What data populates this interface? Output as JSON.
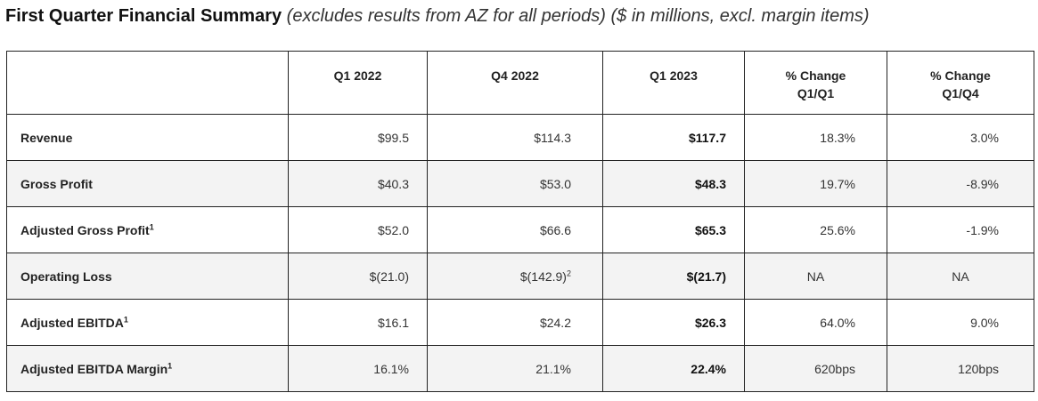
{
  "heading": {
    "title": "First Quarter Financial Summary",
    "subtitle": "(excludes results from AZ for all periods) ($ in millions, excl. margin items)"
  },
  "table": {
    "columns": [
      {
        "line1": "",
        "line2": ""
      },
      {
        "line1": "Q1 2022",
        "line2": ""
      },
      {
        "line1": "Q4 2022",
        "line2": ""
      },
      {
        "line1": "Q1 2023",
        "line2": ""
      },
      {
        "line1": "% Change",
        "line2": "Q1/Q1"
      },
      {
        "line1": "% Change",
        "line2": "Q1/Q4"
      }
    ],
    "rows": [
      {
        "label": "Revenue",
        "label_sup": "",
        "q1_2022": "$99.5",
        "q4_2022": "$114.3",
        "q4_sup": "",
        "q1_2023": "$117.7",
        "chg_q1q1": "18.3%",
        "chg_q1q4": "3.0%"
      },
      {
        "label": "Gross Profit",
        "label_sup": "",
        "q1_2022": "$40.3",
        "q4_2022": "$53.0",
        "q4_sup": "",
        "q1_2023": "$48.3",
        "chg_q1q1": "19.7%",
        "chg_q1q4": "-8.9%"
      },
      {
        "label": "Adjusted Gross Profit",
        "label_sup": "1",
        "q1_2022": "$52.0",
        "q4_2022": "$66.6",
        "q4_sup": "",
        "q1_2023": "$65.3",
        "chg_q1q1": "25.6%",
        "chg_q1q4": "-1.9%"
      },
      {
        "label": "Operating Loss",
        "label_sup": "",
        "q1_2022": "$(21.0)",
        "q4_2022": "$(142.9)",
        "q4_sup": "2",
        "q1_2023": "$(21.7)",
        "chg_q1q1": "NA",
        "chg_q1q4": "NA"
      },
      {
        "label": "Adjusted EBITDA",
        "label_sup": "1",
        "q1_2022": "$16.1",
        "q4_2022": "$24.2",
        "q4_sup": "",
        "q1_2023": "$26.3",
        "chg_q1q1": "64.0%",
        "chg_q1q4": "9.0%"
      },
      {
        "label": "Adjusted EBITDA Margin",
        "label_sup": "1",
        "q1_2022": "16.1%",
        "q4_2022": "21.1%",
        "q4_sup": "",
        "q1_2023": "22.4%",
        "chg_q1q1": "620bps",
        "chg_q1q4": "120bps"
      }
    ]
  }
}
